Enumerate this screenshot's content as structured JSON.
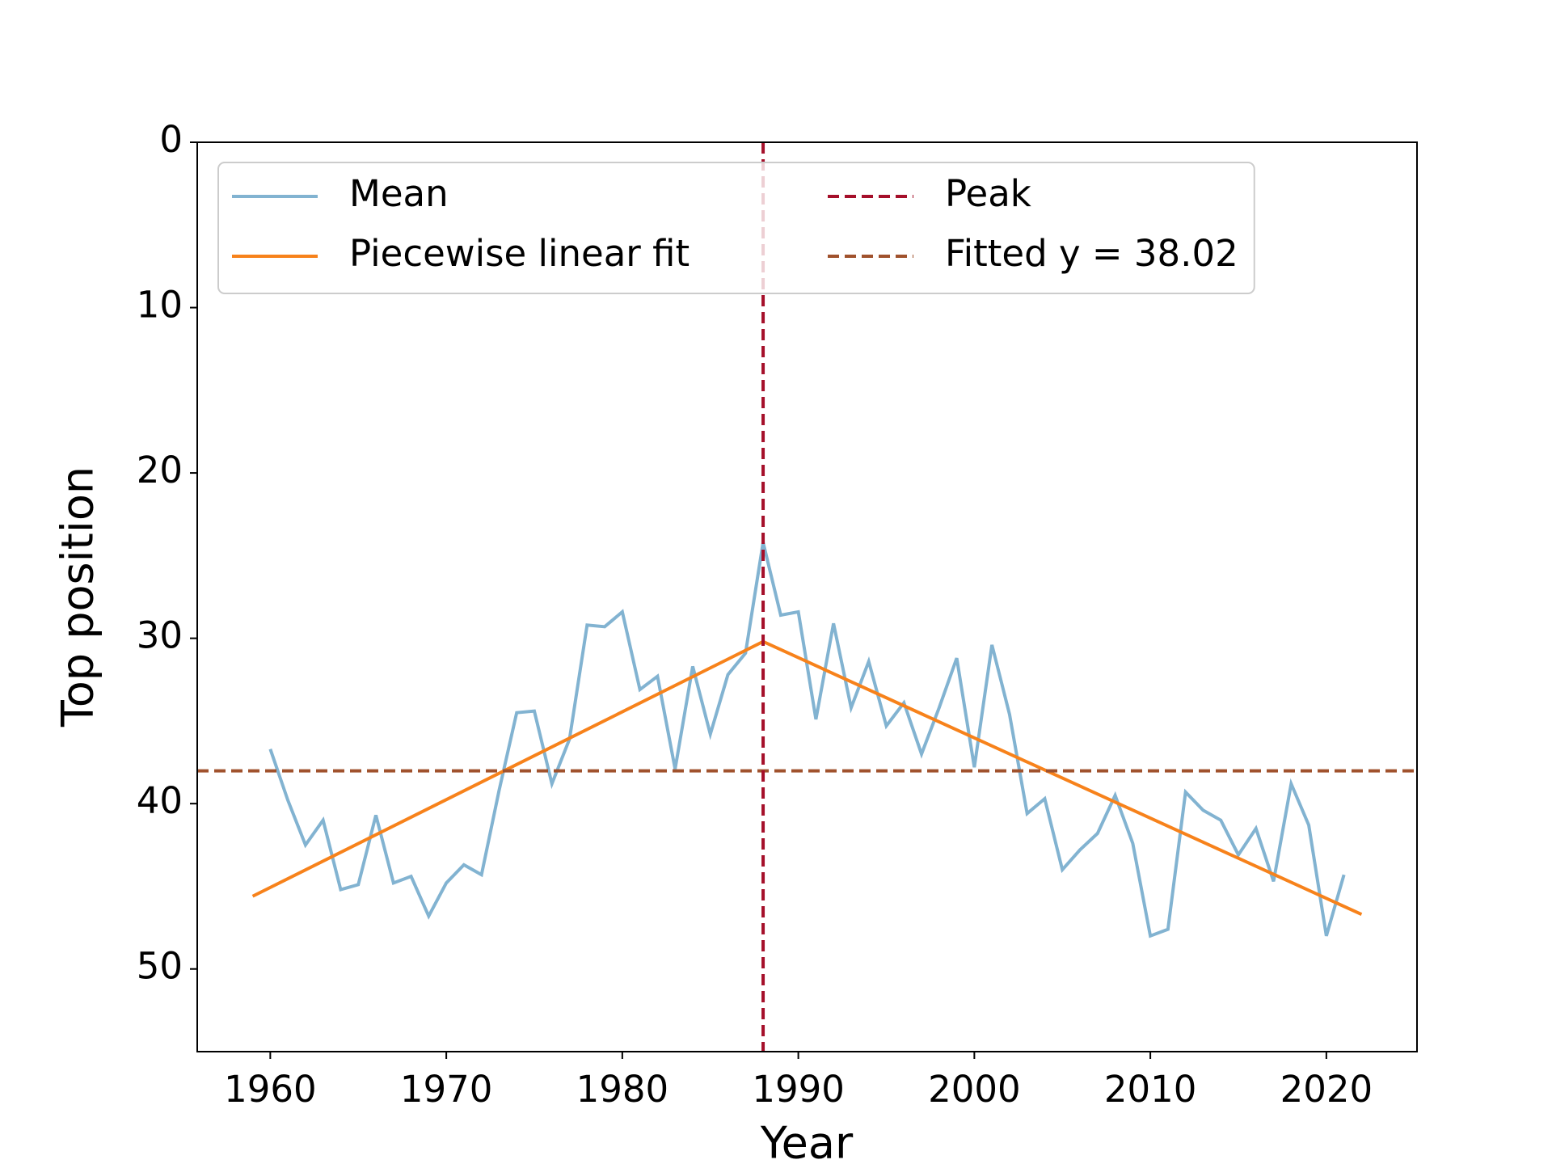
{
  "chart_data": {
    "type": "line",
    "x_label": "Year",
    "y_label": "Top position",
    "xlim": [
      1955.85,
      2025.15
    ],
    "xticks": [
      1960,
      1970,
      1980,
      1990,
      2000,
      2010,
      2020
    ],
    "ylim": [
      55,
      0
    ],
    "yticks": [
      0,
      10,
      20,
      30,
      40,
      50
    ],
    "grid": false,
    "legend": "upper left",
    "legend_columns": 2,
    "series": [
      {
        "name": "Mean",
        "color": "#82b3d1",
        "dash": "solid",
        "x": [
          1960,
          1961,
          1962,
          1963,
          1964,
          1965,
          1966,
          1967,
          1968,
          1969,
          1970,
          1971,
          1972,
          1973,
          1974,
          1975,
          1976,
          1977,
          1978,
          1979,
          1980,
          1981,
          1982,
          1983,
          1984,
          1985,
          1986,
          1987,
          1988,
          1989,
          1990,
          1991,
          1992,
          1993,
          1994,
          1995,
          1996,
          1997,
          1998,
          1999,
          2000,
          2001,
          2002,
          2003,
          2004,
          2005,
          2006,
          2007,
          2008,
          2009,
          2010,
          2011,
          2012,
          2013,
          2014,
          2015,
          2016,
          2017,
          2018,
          2019,
          2020,
          2021
        ],
        "values": [
          36.7,
          39.8,
          42.5,
          41.0,
          45.2,
          44.9,
          40.7,
          44.8,
          44.4,
          46.8,
          44.8,
          43.7,
          44.3,
          39.2,
          34.5,
          34.4,
          38.8,
          36.1,
          29.2,
          29.3,
          28.4,
          33.1,
          32.3,
          37.9,
          31.7,
          35.8,
          32.2,
          30.9,
          24.2,
          28.6,
          28.4,
          34.9,
          29.1,
          34.2,
          31.4,
          35.3,
          33.9,
          37.0,
          34.2,
          31.2,
          37.8,
          30.4,
          34.6,
          40.6,
          39.7,
          44.0,
          42.8,
          41.8,
          39.5,
          42.4,
          48.0,
          47.6,
          39.3,
          40.4,
          41.0,
          43.1,
          41.5,
          44.7,
          38.8,
          41.3,
          48.0,
          44.3
        ]
      },
      {
        "name": "Piecewise linear fit",
        "color": "#f7821b",
        "dash": "solid",
        "x": [
          1959,
          1988,
          2022
        ],
        "values": [
          45.6,
          30.2,
          46.7
        ]
      }
    ],
    "vlines": [
      {
        "name": "Peak",
        "x": 1988,
        "color": "#a50f2a",
        "dash": "dashed"
      }
    ],
    "hlines": [
      {
        "name": "Fitted y = 38.02",
        "y": 38.02,
        "color": "#a0522d",
        "dash": "dashed"
      }
    ]
  }
}
